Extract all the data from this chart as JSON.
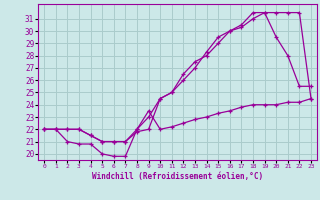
{
  "xlabel": "Windchill (Refroidissement éolien,°C)",
  "xlim": [
    -0.5,
    23.5
  ],
  "ylim": [
    19.5,
    32.2
  ],
  "yticks": [
    20,
    21,
    22,
    23,
    24,
    25,
    26,
    27,
    28,
    29,
    30,
    31
  ],
  "xticks": [
    0,
    1,
    2,
    3,
    4,
    5,
    6,
    7,
    8,
    9,
    10,
    11,
    12,
    13,
    14,
    15,
    16,
    17,
    18,
    19,
    20,
    21,
    22,
    23
  ],
  "bg_color": "#cce8e8",
  "line_color": "#990099",
  "grid_color": "#aacccc",
  "line1_x": [
    0,
    1,
    2,
    3,
    4,
    5,
    6,
    7,
    8,
    9,
    10,
    11,
    12,
    13,
    14,
    15,
    16,
    17,
    18,
    19,
    20,
    21,
    22,
    23
  ],
  "line1_y": [
    22,
    22,
    21,
    20.8,
    20.8,
    20,
    19.8,
    19.8,
    22,
    23.5,
    22,
    22.2,
    22.5,
    22.8,
    23,
    23.3,
    23.5,
    23.8,
    24,
    24,
    24,
    24.2,
    24.2,
    24.5
  ],
  "line2_x": [
    0,
    1,
    2,
    3,
    4,
    5,
    6,
    7,
    8,
    9,
    10,
    11,
    12,
    13,
    14,
    15,
    16,
    17,
    18,
    19,
    20,
    21,
    22,
    23
  ],
  "line2_y": [
    22,
    22,
    22,
    22,
    21.5,
    21,
    21,
    21,
    21.8,
    22,
    24.5,
    25,
    26,
    27,
    28.3,
    29.5,
    30,
    30.3,
    31,
    31.5,
    29.5,
    28,
    25.5,
    25.5
  ],
  "line3_x": [
    0,
    1,
    2,
    3,
    4,
    5,
    6,
    7,
    8,
    9,
    10,
    11,
    12,
    13,
    14,
    15,
    16,
    17,
    18,
    19,
    20,
    21,
    22,
    23
  ],
  "line3_y": [
    22,
    22,
    22,
    22,
    21.5,
    21,
    21,
    21,
    22,
    23,
    24.5,
    25,
    26.5,
    27.5,
    28,
    29,
    30,
    30.5,
    31.5,
    31.5,
    31.5,
    31.5,
    31.5,
    24.5
  ]
}
